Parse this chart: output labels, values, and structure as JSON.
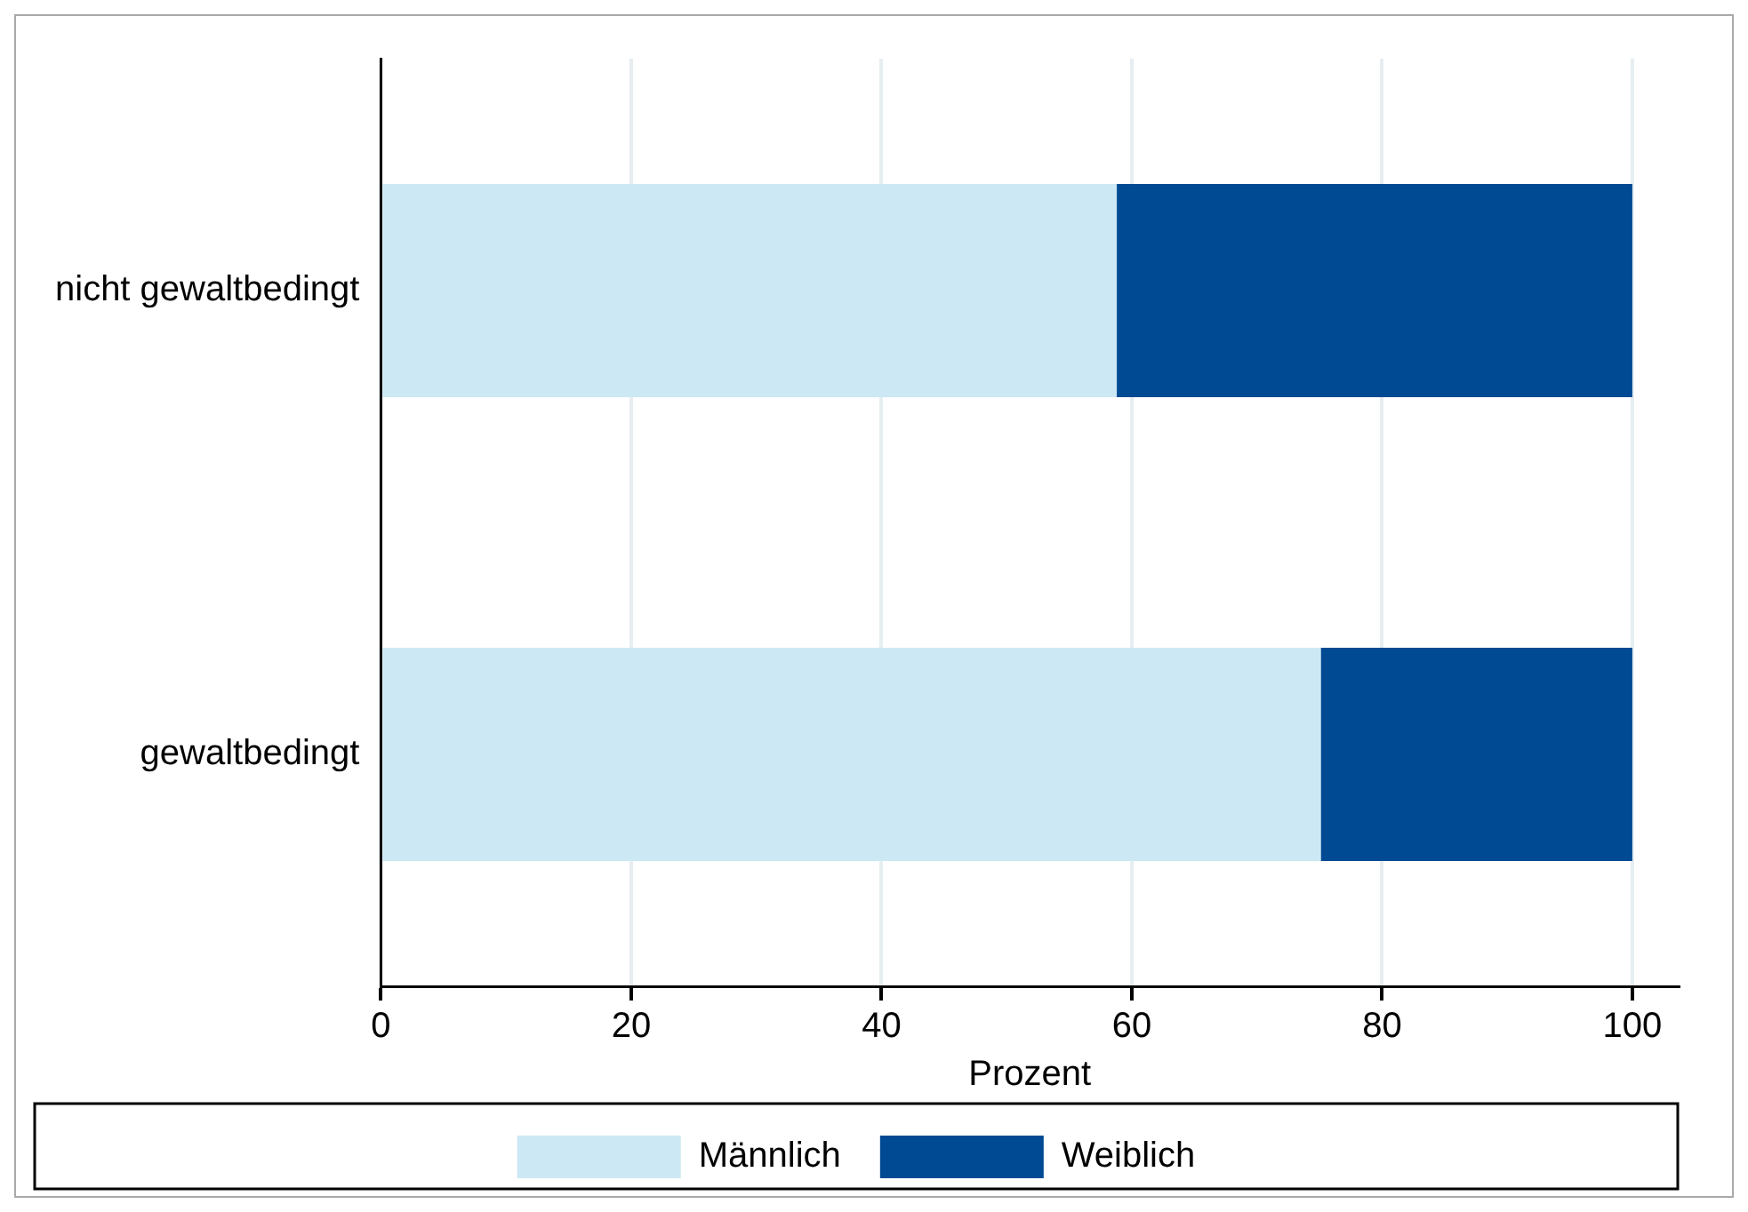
{
  "chart_data": {
    "type": "bar",
    "orientation": "horizontal",
    "stacked": true,
    "categories": [
      "nicht gewaltbedingt",
      "gewaltbedingt"
    ],
    "series": [
      {
        "name": "Männlich",
        "color": "#cce8f5",
        "values": [
          58.8,
          75.1
        ]
      },
      {
        "name": "Weiblich",
        "color": "#004a94",
        "values": [
          41.2,
          24.9
        ]
      }
    ],
    "xlabel": "Prozent",
    "xlim": [
      0,
      103.7
    ],
    "xticks": [
      0,
      20,
      40,
      60,
      80,
      100
    ],
    "grid": "x",
    "legend": "bottom"
  }
}
